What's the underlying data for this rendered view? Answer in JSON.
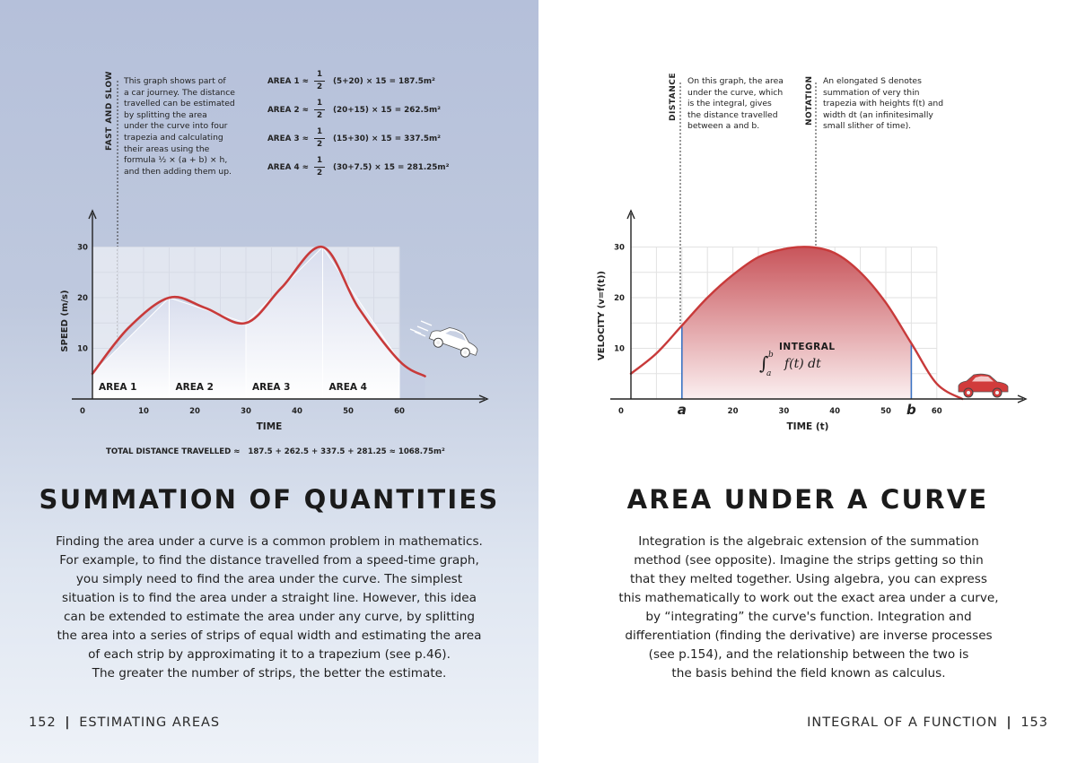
{
  "left_page": {
    "vertical_label": "FAST AND SLOW",
    "intro_lines": [
      "This graph shows part of",
      "a car journey. The distance",
      "travelled can be estimated",
      "by splitting the area",
      "under the curve into four",
      "trapezia and calculating",
      "their areas using the",
      "formula ½ × (a + b) × h,",
      "and then adding them up."
    ],
    "area_formulas": [
      {
        "label": "AREA 1 ≈",
        "num": "1",
        "den": "2",
        "expr": "(5+20) × 15 = 187.5m²"
      },
      {
        "label": "AREA 2 ≈",
        "num": "1",
        "den": "2",
        "expr": "(20+15) × 15 = 262.5m²"
      },
      {
        "label": "AREA 3 ≈",
        "num": "1",
        "den": "2",
        "expr": "(15+30) × 15 = 337.5m²"
      },
      {
        "label": "AREA 4 ≈",
        "num": "1",
        "den": "2",
        "expr": "(30+7.5) × 15 = 281.25m²"
      }
    ],
    "total": "TOTAL DISTANCE TRAVELLED ≈   187.5 + 262.5 + 337.5 + 281.25 ≈ 1068.75m²",
    "heading": "SUMMATION OF QUANTITIES",
    "body_lines": [
      "Finding the area under a curve is a common problem in mathematics.",
      "For example, to find the distance travelled from a speed-time graph,",
      "you simply need to find the area under the curve. The simplest",
      "situation is to find the area under a straight line. However, this idea",
      "can be extended to estimate the area under any curve, by splitting",
      "the area into a series of strips of equal width and estimating the area",
      "of each strip by approximating it to a trapezium (see p.46).",
      "The greater the number of strips, the better the estimate."
    ],
    "footer_page": "152",
    "footer_title": "ESTIMATING AREAS"
  },
  "right_page": {
    "distance_label": "DISTANCE",
    "distance_lines": [
      "On this graph, the area",
      "under the curve, which",
      "is the integral, gives",
      "the distance travelled",
      "between a and b."
    ],
    "notation_label": "NOTATION",
    "notation_lines": [
      "An elongated S denotes",
      "summation of very thin",
      "trapezia with heights f(t) and",
      "width dt (an infinitesimally",
      "small slither of time)."
    ],
    "integral_label": "INTEGRAL",
    "integral_expr": "f(t) dt",
    "integral_upper": "b",
    "integral_lower": "a",
    "heading": "AREA UNDER A CURVE",
    "body_lines": [
      "Integration is the algebraic extension of the summation",
      "method (see opposite). Imagine the strips getting so thin",
      "that they melted together. Using algebra, you can express",
      "this mathematically to work out the exact area under a curve,",
      "by “integrating” the curve's function. Integration and",
      "differentiation (finding the derivative) are inverse processes",
      "(see p.154), and the relationship between the two is",
      "the basis behind the field known as calculus."
    ],
    "footer_title": "INTEGRAL OF A FUNCTION",
    "footer_page": "153"
  },
  "chart_data": [
    {
      "type": "area",
      "xlabel": "TIME",
      "ylabel": "SPEED (m/s)",
      "xlim": [
        0,
        60
      ],
      "ylim": [
        0,
        30
      ],
      "x_ticks": [
        "0",
        "10",
        "20",
        "30",
        "40",
        "50",
        "60"
      ],
      "y_ticks": [
        "10",
        "20",
        "30"
      ],
      "grid": true,
      "trapezia": [
        {
          "label": "AREA 1",
          "x0": 0,
          "x1": 15,
          "y0": 5,
          "y1": 20
        },
        {
          "label": "AREA 2",
          "x0": 15,
          "x1": 30,
          "y0": 20,
          "y1": 15
        },
        {
          "label": "AREA 3",
          "x0": 30,
          "x1": 45,
          "y0": 15,
          "y1": 30
        },
        {
          "label": "AREA 4",
          "x0": 45,
          "x1": 60,
          "y0": 30,
          "y1": 7.5
        }
      ],
      "curve": {
        "x": [
          0,
          7,
          15,
          22,
          30,
          37,
          45,
          52,
          60,
          65
        ],
        "y": [
          5,
          14,
          20,
          18,
          15,
          22,
          30,
          18,
          7.5,
          4.5
        ]
      },
      "colors": {
        "curve": "#c83a3a",
        "fill": "#f2f4fa"
      }
    },
    {
      "type": "area",
      "xlabel": "TIME (t)",
      "ylabel": "VELOCITY (v=f(t))",
      "xlim": [
        0,
        60
      ],
      "ylim": [
        0,
        30
      ],
      "x_ticks": [
        "0",
        "a",
        "20",
        "30",
        "40",
        "50",
        "b",
        "60"
      ],
      "y_ticks": [
        "10",
        "20",
        "30"
      ],
      "grid": true,
      "bounds": {
        "a": 10,
        "b": 55
      },
      "curve": {
        "x": [
          0,
          5,
          10,
          15,
          20,
          25,
          30,
          35,
          40,
          45,
          50,
          55,
          60,
          65
        ],
        "y": [
          5,
          9,
          14.5,
          20,
          24.5,
          28,
          29.6,
          30,
          28.8,
          25,
          19,
          11,
          3,
          0
        ]
      },
      "colors": {
        "curve": "#c83a3a",
        "fill_top": "#c8545a",
        "bound_lines": "#3b74c4",
        "car": "#d13b3b"
      }
    }
  ]
}
